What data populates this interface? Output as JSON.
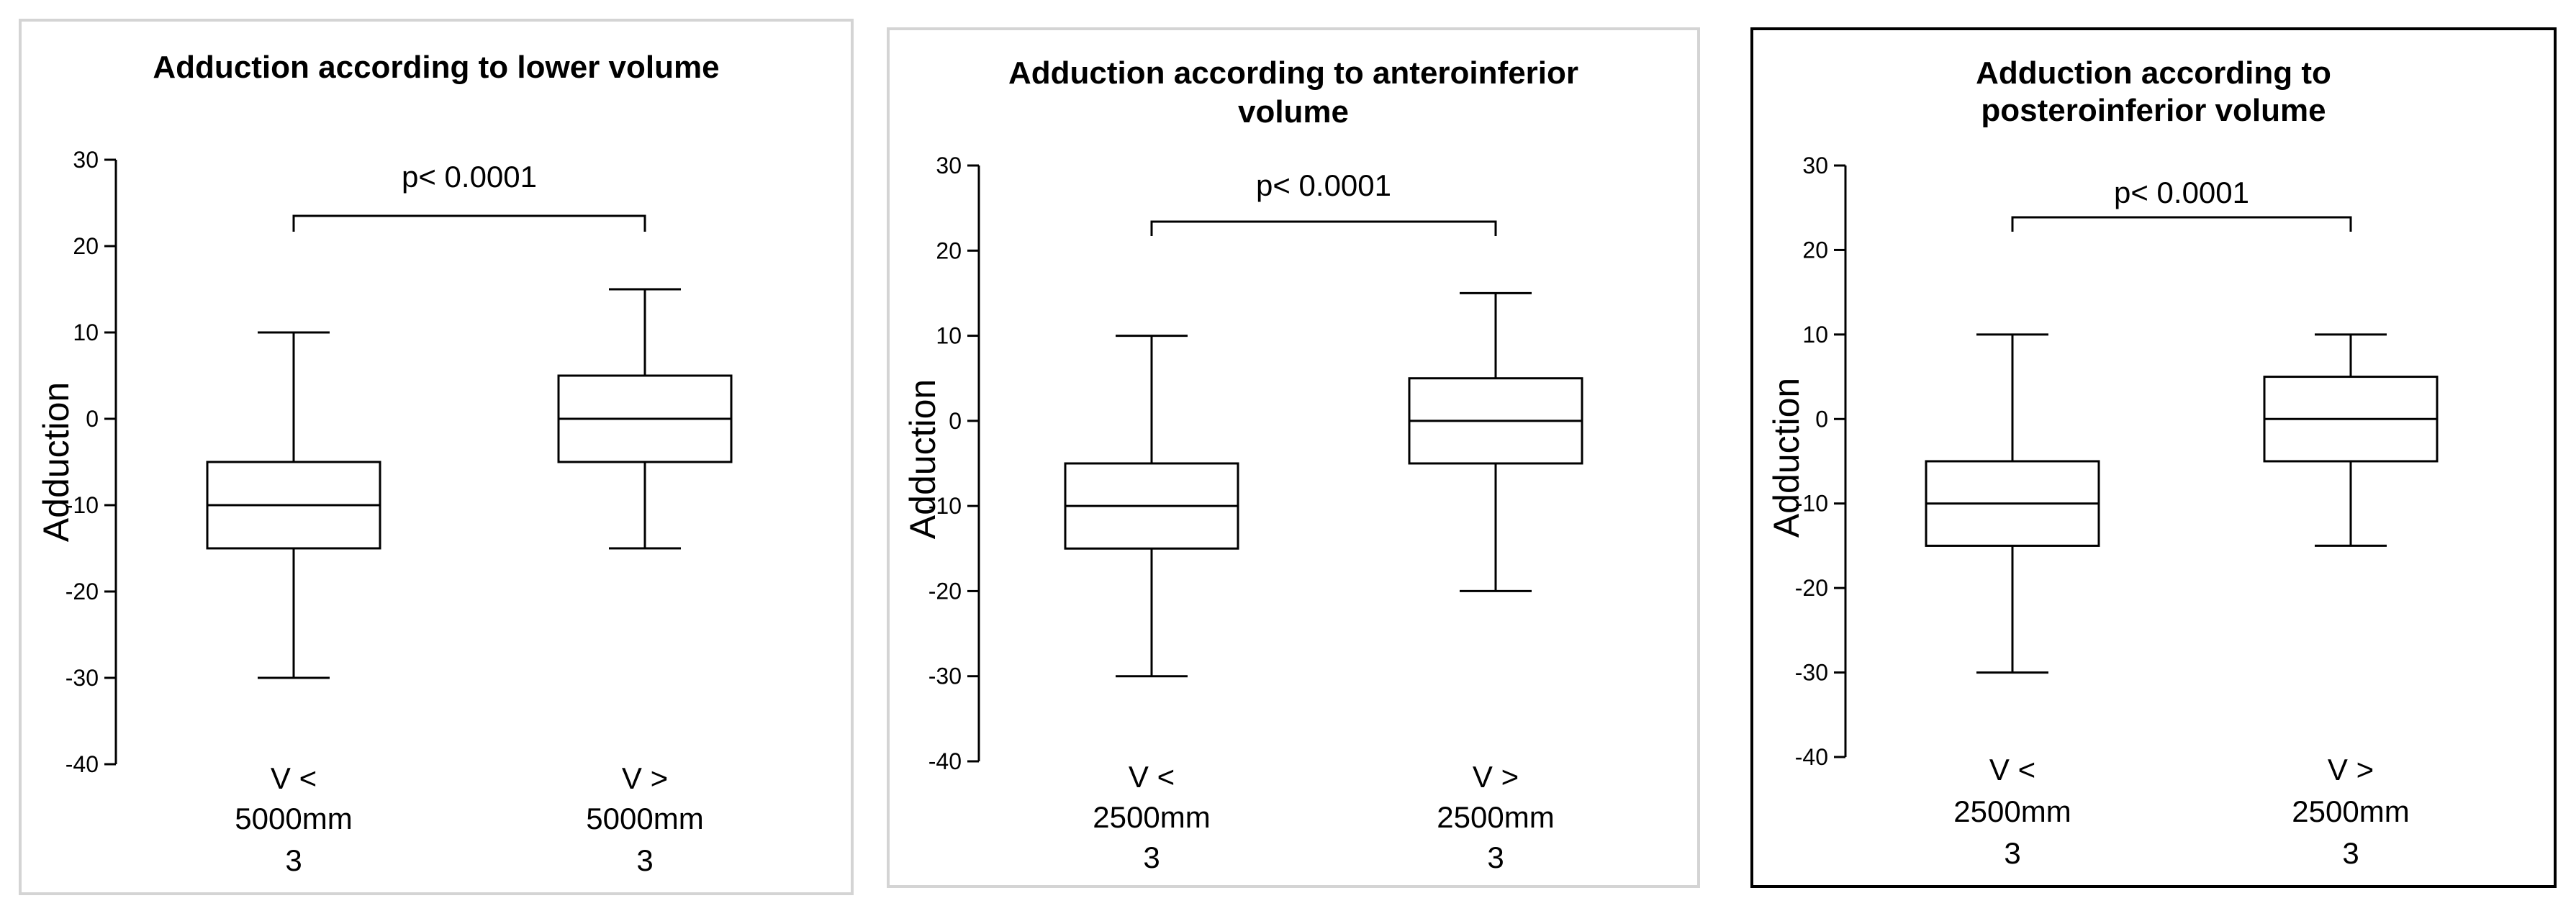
{
  "chart_data": [
    {
      "type": "box",
      "title": "Adduction according to lower volume",
      "ylabel": "Adduction",
      "ylim": [
        -40,
        30
      ],
      "yticks": [
        30,
        20,
        10,
        0,
        -10,
        -20,
        -30,
        -40
      ],
      "categories": [
        [
          "V <",
          "5000mm",
          "3"
        ],
        [
          "V >",
          "5000mm",
          "3"
        ]
      ],
      "boxes": [
        {
          "min": -30,
          "q1": -15,
          "median": -10,
          "q3": -5,
          "max": 10
        },
        {
          "min": -15,
          "q1": -5,
          "median": 0,
          "q3": 5,
          "max": 15
        }
      ],
      "annotation": "p< 0.0001",
      "border_color": "#d4d4d4"
    },
    {
      "type": "box",
      "title": [
        "Adduction according to anteroinferior",
        "volume"
      ],
      "ylabel": "Adduction",
      "ylim": [
        -40,
        30
      ],
      "yticks": [
        30,
        20,
        10,
        0,
        -10,
        -20,
        -30,
        -40
      ],
      "categories": [
        [
          "V <",
          "2500mm",
          "3"
        ],
        [
          "V >",
          "2500mm",
          "3"
        ]
      ],
      "boxes": [
        {
          "min": -30,
          "q1": -15,
          "median": -10,
          "q3": -5,
          "max": 10
        },
        {
          "min": -20,
          "q1": -5,
          "median": 0,
          "q3": 5,
          "max": 15
        }
      ],
      "annotation": "p< 0.0001",
      "border_color": "#d4d4d4"
    },
    {
      "type": "box",
      "title": [
        "Adduction according to",
        "posteroinferior volume"
      ],
      "ylabel": "Adduction",
      "ylim": [
        -40,
        30
      ],
      "yticks": [
        30,
        20,
        10,
        0,
        -10,
        -20,
        -30,
        -40
      ],
      "categories": [
        [
          "V <",
          "2500mm",
          "3"
        ],
        [
          "V >",
          "2500mm",
          "3"
        ]
      ],
      "boxes": [
        {
          "min": -30,
          "q1": -15,
          "median": -10,
          "q3": -5,
          "max": 10
        },
        {
          "min": -15,
          "q1": -5,
          "median": 0,
          "q3": 5,
          "max": 10
        }
      ],
      "annotation": "p< 0.0001",
      "border_color": "#000000"
    }
  ]
}
